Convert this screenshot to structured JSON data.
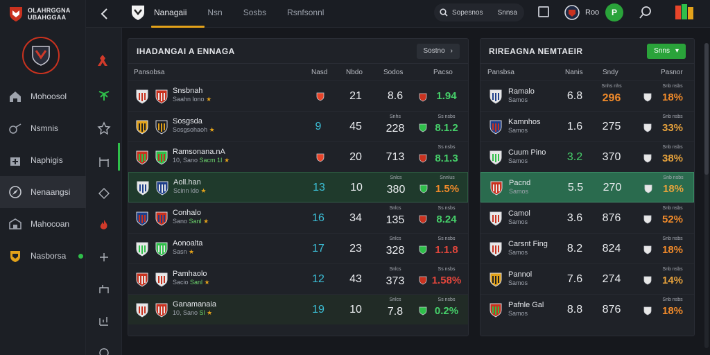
{
  "brand": {
    "line1": "OLAHRGGNA",
    "line2": "UBAHGGAA"
  },
  "sidebar": {
    "items": [
      {
        "label": "Mohoosol",
        "icon": "home-icon"
      },
      {
        "label": "Nsmnis",
        "icon": "whistle-icon"
      },
      {
        "label": "Naphigis",
        "icon": "medic-icon"
      },
      {
        "label": "Nenaangsi",
        "icon": "compass-icon",
        "active": true
      },
      {
        "label": "Mahocoan",
        "icon": "stadium-icon"
      },
      {
        "label": "Nasborsa",
        "icon": "crest-icon",
        "online": true
      }
    ]
  },
  "topbar": {
    "tabs": [
      "Nanagaii",
      "Nsn",
      "Sosbs",
      "Rsnfsonnl"
    ],
    "active_tab": 0,
    "search": {
      "left": "Sopesnos",
      "right": "Snnsa"
    },
    "user": "Roo",
    "go_label": "P"
  },
  "left_panel": {
    "title": "IHADANGAI A ENNAGA",
    "button": "Sostno",
    "columns": {
      "team": "Pansobsa",
      "c1": "Nasd",
      "c2": "Nbdo",
      "c3": "Sodos",
      "c4": "Pacso"
    },
    "rows": [
      {
        "name": "Snsbnah",
        "sub": "Saahn lono",
        "subg": "",
        "c1": "",
        "c2": "21",
        "c3": "8.6",
        "c3t": "",
        "c4": "1.94",
        "c4t": "",
        "c4color": "green"
      },
      {
        "name": "Sosgsda",
        "sub": "Sosgsohaoh",
        "subg": "",
        "c1": "9",
        "c2": "45",
        "c3": "228",
        "c3t": "Snhs",
        "c4": "8.1.2",
        "c4t": "Ss nsbs",
        "c4color": "green"
      },
      {
        "name": "Ramsonana.nA",
        "sub": "10, Sano",
        "subg": "Sacm 1I",
        "c1": "",
        "c2": "20",
        "c3": "713",
        "c3t": "",
        "c4": "8.1.3",
        "c4t": "Ss nsbs",
        "c4color": "green"
      },
      {
        "name": "Aoll.han",
        "sub": "Scinn ldo",
        "subg": "",
        "c1": "13",
        "c2": "10",
        "c3": "380",
        "c3t": "Snlcs",
        "c4": "1.5%",
        "c4t": "Snnlus",
        "c4color": "orange"
      },
      {
        "name": "Conhalo",
        "sub": "Sano",
        "subg": "Sanl",
        "c1": "16",
        "c2": "34",
        "c3": "135",
        "c3t": "Snlcs",
        "c4": "8.24",
        "c4t": "Ss nsbs",
        "c4color": "green"
      },
      {
        "name": "Aonoalta",
        "sub": "Sasn",
        "subg": "",
        "c1": "17",
        "c2": "23",
        "c3": "328",
        "c3t": "Snlcs",
        "c4": "1.1.8",
        "c4t": "Ss nsbs",
        "c4color": "red"
      },
      {
        "name": "Pamhaolo",
        "sub": "Sacio",
        "subg": "Sanl",
        "c1": "12",
        "c2": "43",
        "c3": "373",
        "c3t": "Snlcs",
        "c4": "1.58%",
        "c4t": "Ss nsbs",
        "c4color": "red"
      },
      {
        "name": "Ganamanaia",
        "sub": "10, Sano",
        "subg": "Sl",
        "c1": "19",
        "c2": "10",
        "c3": "7.8",
        "c3t": "Snlcs",
        "c4": "0.2%",
        "c4t": "Ss nsbs",
        "c4color": "green"
      }
    ]
  },
  "right_panel": {
    "title": "RIREAGNA NEMTAEIR",
    "button": "Snns",
    "columns": {
      "team": "Pansbsa",
      "c1": "Nanis",
      "c2": "Sndy",
      "c3": "Pasnor"
    },
    "rows": [
      {
        "name": "Ramalo",
        "sub": "Samos",
        "c1": "6.8",
        "c2": "296",
        "c2t": "Snhs nhs",
        "c3": "18%",
        "c3t": "Snb nsbs",
        "c3color": "orange",
        "c2color": "orange"
      },
      {
        "name": "Kamnhos",
        "sub": "Samos",
        "c1": "1.6",
        "c2": "275",
        "c2t": "",
        "c3": "33%",
        "c3t": "Snb nsbs",
        "c3color": "amber",
        "c2color": "white"
      },
      {
        "name": "Cuum Pino",
        "sub": "Samos",
        "c1": "3.2",
        "c2": "370",
        "c2t": "",
        "c3": "38%",
        "c3t": "Snb nsbs",
        "c3color": "amber",
        "c2color": "white",
        "c1color": "green"
      },
      {
        "name": "Pacnd",
        "sub": "Samos",
        "c1": "5.5",
        "c2": "270",
        "c2t": "",
        "c3": "18%",
        "c3t": "Snb nsbs",
        "c3color": "amber",
        "c2color": "white"
      },
      {
        "name": "Camol",
        "sub": "Samos",
        "c1": "3.6",
        "c2": "876",
        "c2t": "",
        "c3": "52%",
        "c3t": "Snb nsbs",
        "c3color": "orange",
        "c2color": "white"
      },
      {
        "name": "Carsnt Fing",
        "sub": "Samos",
        "c1": "8.2",
        "c2": "824",
        "c2t": "",
        "c3": "18%",
        "c3t": "Snb nsbs",
        "c3color": "orange",
        "c2color": "white"
      },
      {
        "name": "Pannol",
        "sub": "Samos",
        "c1": "7.6",
        "c2": "274",
        "c2t": "",
        "c3": "14%",
        "c3t": "Snb nsbs",
        "c3color": "amber",
        "c2color": "white"
      },
      {
        "name": "Pafnle Gal",
        "sub": "Samos",
        "c1": "8.8",
        "c2": "876",
        "c2t": "",
        "c3": "18%",
        "c3t": "Snb nsbs",
        "c3color": "orange",
        "c2color": "white"
      }
    ]
  },
  "colors": {
    "accent": "#e3a21a",
    "green": "#2aa33a",
    "red": "#c9321f",
    "cyan": "#3cc0d8"
  }
}
